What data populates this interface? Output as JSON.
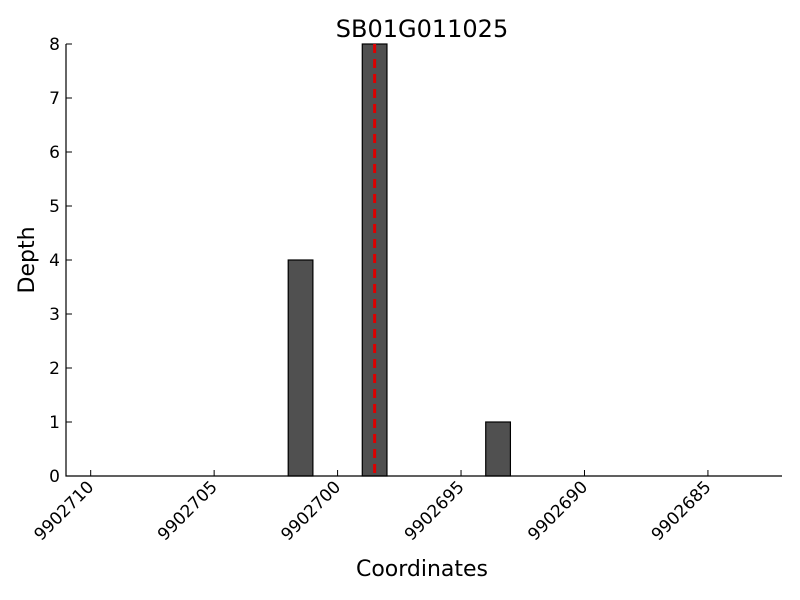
{
  "chart_data": {
    "type": "bar",
    "title": "SB01G011025",
    "xlabel": "Coordinates",
    "ylabel": "Depth",
    "x_reversed": true,
    "xlim": [
      9902711.0,
      9902682.0
    ],
    "ylim": [
      0,
      8
    ],
    "x_ticks": [
      9902710,
      9902705,
      9902700,
      9902695,
      9902690,
      9902685
    ],
    "y_ticks": [
      0,
      1,
      2,
      3,
      4,
      5,
      6,
      7,
      8
    ],
    "x": [
      9902702,
      9902699,
      9902694
    ],
    "values": [
      4,
      8,
      1
    ],
    "bar_width": 1,
    "bar_color": "#505050",
    "marker": {
      "x": 9902699,
      "color": "#dd0000",
      "style": "dashed"
    }
  }
}
